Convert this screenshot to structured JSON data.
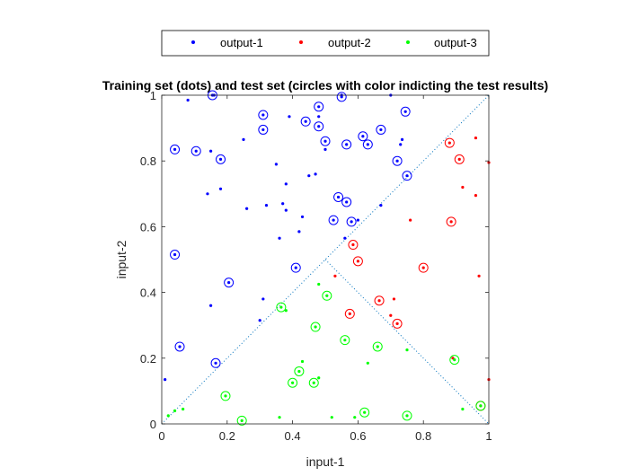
{
  "chart_data": {
    "type": "scatter",
    "title": "Training set (dots) and test set (circles with color indicting the test results)",
    "xlabel": "input-1",
    "ylabel": "input-2",
    "xlim": [
      0,
      1
    ],
    "ylim": [
      0,
      1
    ],
    "xticks": [
      0,
      0.2,
      0.4,
      0.6,
      0.8,
      1
    ],
    "yticks": [
      0,
      0.2,
      0.4,
      0.6,
      0.8,
      1
    ],
    "xtick_labels": [
      "0",
      "0.2",
      "0.4",
      "0.6",
      "0.8",
      "1"
    ],
    "ytick_labels": [
      "0",
      "0.2",
      "0.4",
      "0.6",
      "0.8",
      "1"
    ],
    "grid": false,
    "legend_position": "top, outside plot, horizontal",
    "colors": {
      "output-1": "#0000ff",
      "output-2": "#ff0000",
      "output-3": "#00ff00",
      "boundary": "#0072bd"
    },
    "legend": [
      "output-1",
      "output-2",
      "output-3"
    ],
    "boundary_lines": [
      {
        "style": "dotted",
        "x": [
          0,
          1
        ],
        "y": [
          0,
          1
        ]
      },
      {
        "style": "dotted",
        "x": [
          0.5,
          1
        ],
        "y": [
          0.5,
          0
        ]
      }
    ],
    "series": [
      {
        "name": "output-1",
        "color": "#0000ff",
        "train": [
          [
            0.08,
            0.985
          ],
          [
            0.16,
            1.0
          ],
          [
            0.01,
            0.135
          ],
          [
            0.15,
            0.83
          ],
          [
            0.14,
            0.7
          ],
          [
            0.18,
            0.715
          ],
          [
            0.25,
            0.865
          ],
          [
            0.26,
            0.655
          ],
          [
            0.32,
            0.665
          ],
          [
            0.35,
            0.79
          ],
          [
            0.37,
            0.67
          ],
          [
            0.38,
            0.73
          ],
          [
            0.39,
            0.935
          ],
          [
            0.38,
            0.65
          ],
          [
            0.36,
            0.565
          ],
          [
            0.42,
            0.585
          ],
          [
            0.43,
            0.63
          ],
          [
            0.45,
            0.755
          ],
          [
            0.47,
            0.76
          ],
          [
            0.5,
            0.835
          ],
          [
            0.55,
            1.0
          ],
          [
            0.56,
            0.565
          ],
          [
            0.6,
            0.62
          ],
          [
            0.67,
            0.665
          ],
          [
            0.7,
            1.0
          ],
          [
            0.73,
            0.85
          ],
          [
            0.735,
            0.865
          ],
          [
            0.15,
            0.36
          ],
          [
            0.3,
            0.315
          ],
          [
            0.31,
            0.38
          ],
          [
            0.48,
            0.935
          ]
        ],
        "test": [
          [
            0.04,
            0.835
          ],
          [
            0.105,
            0.83
          ],
          [
            0.18,
            0.805
          ],
          [
            0.155,
            1.0
          ],
          [
            0.31,
            0.94
          ],
          [
            0.31,
            0.895
          ],
          [
            0.44,
            0.92
          ],
          [
            0.48,
            0.905
          ],
          [
            0.48,
            0.965
          ],
          [
            0.55,
            0.995
          ],
          [
            0.5,
            0.86
          ],
          [
            0.565,
            0.85
          ],
          [
            0.615,
            0.875
          ],
          [
            0.63,
            0.85
          ],
          [
            0.67,
            0.895
          ],
          [
            0.72,
            0.8
          ],
          [
            0.745,
            0.95
          ],
          [
            0.75,
            0.755
          ],
          [
            0.54,
            0.69
          ],
          [
            0.565,
            0.675
          ],
          [
            0.525,
            0.62
          ],
          [
            0.58,
            0.615
          ],
          [
            0.04,
            0.515
          ],
          [
            0.205,
            0.43
          ],
          [
            0.41,
            0.475
          ],
          [
            0.055,
            0.235
          ],
          [
            0.165,
            0.185
          ]
        ]
      },
      {
        "name": "output-2",
        "color": "#ff0000",
        "train": [
          [
            0.96,
            0.87
          ],
          [
            0.92,
            0.72
          ],
          [
            0.96,
            0.695
          ],
          [
            0.76,
            0.62
          ],
          [
            0.97,
            0.45
          ],
          [
            0.71,
            0.38
          ],
          [
            0.7,
            0.33
          ],
          [
            0.53,
            0.45
          ],
          [
            0.89,
            0.2
          ],
          [
            1.0,
            0.135
          ],
          [
            1.0,
            0.795
          ]
        ],
        "test": [
          [
            0.88,
            0.855
          ],
          [
            0.91,
            0.805
          ],
          [
            0.885,
            0.615
          ],
          [
            0.585,
            0.545
          ],
          [
            0.6,
            0.495
          ],
          [
            0.8,
            0.475
          ],
          [
            0.665,
            0.375
          ],
          [
            0.575,
            0.335
          ],
          [
            0.72,
            0.305
          ],
          [
            0.975,
            0.055
          ]
        ]
      },
      {
        "name": "output-3",
        "color": "#00ff00",
        "train": [
          [
            0.02,
            0.025
          ],
          [
            0.04,
            0.04
          ],
          [
            0.065,
            0.045
          ],
          [
            0.36,
            0.02
          ],
          [
            0.38,
            0.345
          ],
          [
            0.48,
            0.425
          ],
          [
            0.48,
            0.14
          ],
          [
            0.43,
            0.19
          ],
          [
            0.63,
            0.185
          ],
          [
            0.59,
            0.02
          ],
          [
            0.52,
            0.02
          ],
          [
            0.92,
            0.045
          ],
          [
            0.75,
            0.225
          ]
        ],
        "test": [
          [
            0.245,
            0.01
          ],
          [
            0.195,
            0.085
          ],
          [
            0.365,
            0.355
          ],
          [
            0.47,
            0.295
          ],
          [
            0.505,
            0.39
          ],
          [
            0.56,
            0.255
          ],
          [
            0.66,
            0.235
          ],
          [
            0.42,
            0.16
          ],
          [
            0.4,
            0.125
          ],
          [
            0.465,
            0.125
          ],
          [
            0.62,
            0.035
          ],
          [
            0.75,
            0.025
          ],
          [
            0.895,
            0.195
          ],
          [
            0.975,
            0.055
          ]
        ]
      }
    ]
  }
}
